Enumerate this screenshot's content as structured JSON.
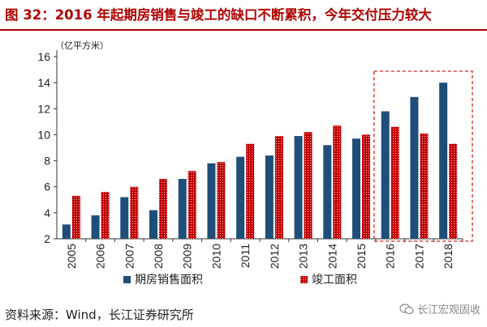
{
  "title": "图 32：2016 年起期房销售与竣工的缺口不断累积，今年交付压力较大",
  "source": "资料来源：Wind，长江证券研究所",
  "watermark": "长江宏观固收",
  "chart_data": {
    "type": "bar",
    "ylabel": "（亿平方米）",
    "ylim": [
      2,
      16
    ],
    "yticks": [
      2,
      4,
      6,
      8,
      10,
      12,
      14,
      16
    ],
    "categories": [
      "2005",
      "2006",
      "2007",
      "2008",
      "2009",
      "2010",
      "2011",
      "2012",
      "2013",
      "2014",
      "2015",
      "2016",
      "2017",
      "2018"
    ],
    "series": [
      {
        "name": "期房销售面积",
        "color": "#1f4e79",
        "pattern": "solid",
        "values": [
          3.1,
          3.8,
          5.2,
          4.2,
          6.6,
          7.8,
          8.3,
          8.4,
          9.9,
          9.2,
          9.7,
          11.8,
          12.9,
          14.0
        ]
      },
      {
        "name": "竣工面积",
        "color": "#c00000",
        "pattern": "dotted",
        "values": [
          5.3,
          5.6,
          6.0,
          6.6,
          7.2,
          7.9,
          9.3,
          9.9,
          10.2,
          10.7,
          10.0,
          10.6,
          10.1,
          9.3
        ]
      }
    ],
    "highlight": {
      "from": "2016",
      "to": "2018",
      "style": "red-dashed-box"
    },
    "legend_position": "bottom"
  }
}
